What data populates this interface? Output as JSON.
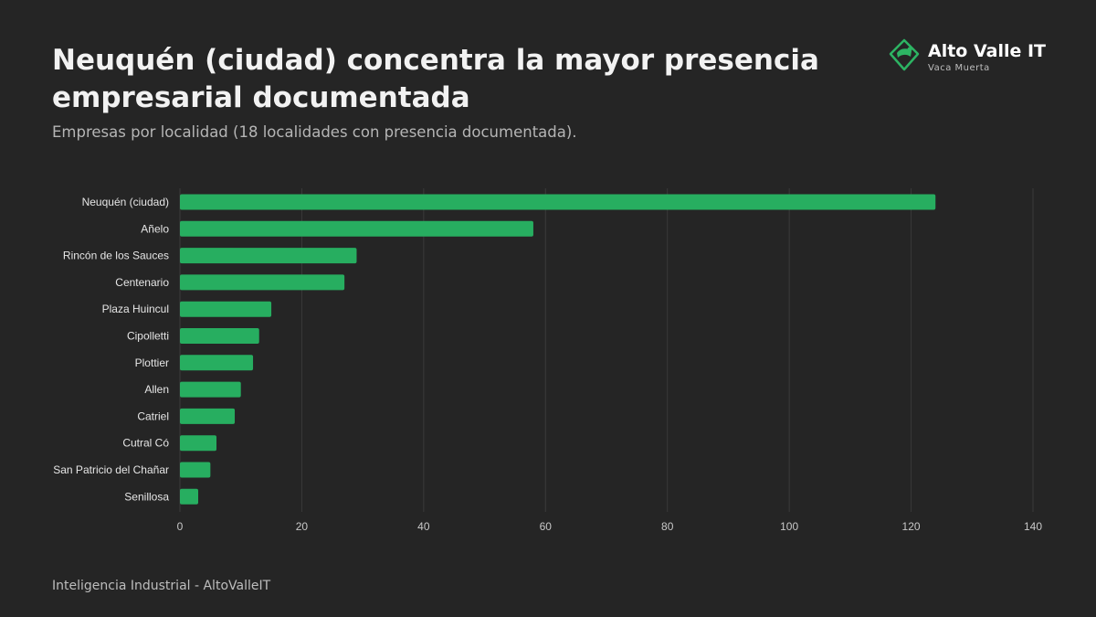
{
  "header": {
    "title": "Neuquén (ciudad) concentra la mayor presencia empresarial documentada",
    "subtitle": "Empresas por localidad (18 localidades con presencia documentada)."
  },
  "brand": {
    "name": "Alto Valle IT",
    "tagline": "Vaca Muerta",
    "icon": "map-pin-logo-icon",
    "color": "#2db463"
  },
  "footer": {
    "text": "Inteligencia Industrial - AltoValleIT"
  },
  "chart_data": {
    "type": "bar",
    "orientation": "horizontal",
    "categories": [
      "Neuquén (ciudad)",
      "Añelo",
      "Rincón de los Sauces",
      "Centenario",
      "Plaza Huincul",
      "Cipolletti",
      "Plottier",
      "Allen",
      "Catriel",
      "Cutral Có",
      "San Patricio del Chañar",
      "Senillosa"
    ],
    "values": [
      124,
      58,
      29,
      27,
      15,
      13,
      12,
      10,
      9,
      6,
      5,
      3
    ],
    "xlim": [
      0,
      140
    ],
    "xticks": [
      0,
      20,
      40,
      60,
      80,
      100,
      120,
      140
    ],
    "grid": true,
    "bar_color": "#27ae60"
  }
}
